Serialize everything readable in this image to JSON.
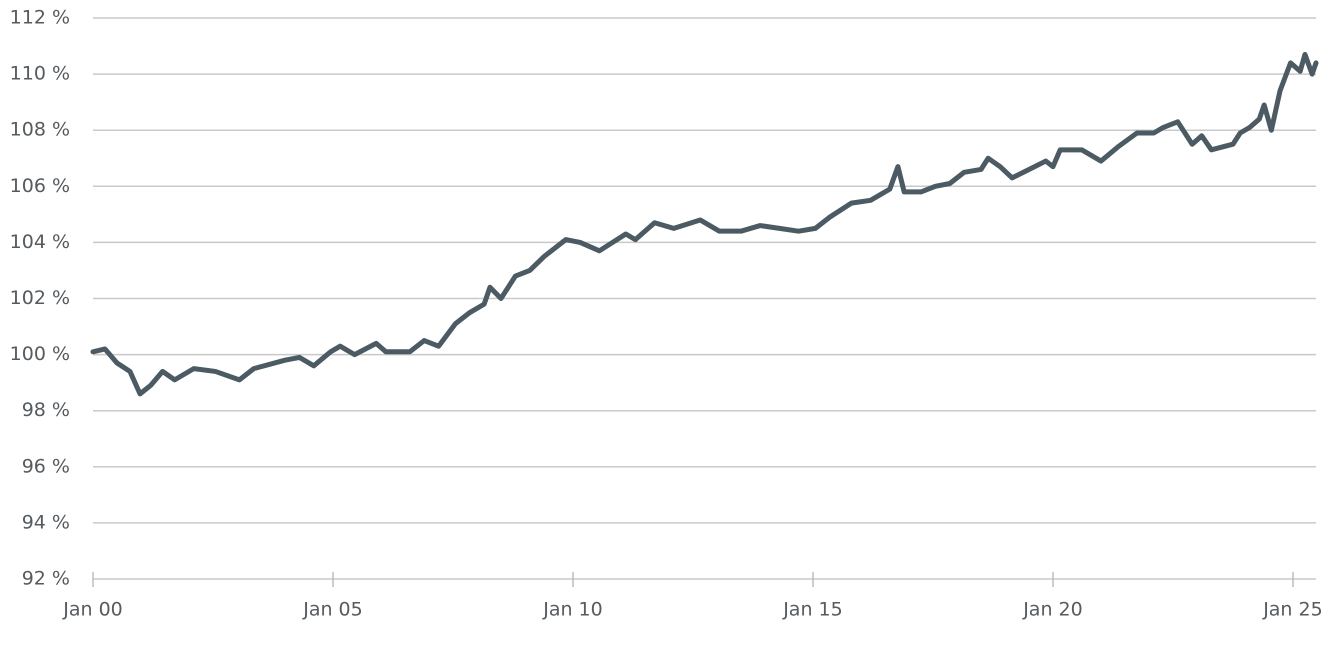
{
  "chart_data": {
    "type": "line",
    "x": [
      2000,
      2000.25,
      2000.5,
      2000.77,
      2000.98,
      2001.2,
      2001.45,
      2001.7,
      2002.1,
      2002.55,
      2003.05,
      2003.35,
      2004.0,
      2004.3,
      2004.6,
      2004.95,
      2005.15,
      2005.45,
      2005.9,
      2006.1,
      2006.6,
      2006.9,
      2007.2,
      2007.55,
      2007.85,
      2008.15,
      2008.27,
      2008.5,
      2008.8,
      2009.1,
      2009.4,
      2009.85,
      2010.15,
      2010.55,
      2011.1,
      2011.3,
      2011.7,
      2012.1,
      2012.65,
      2013.05,
      2013.5,
      2013.9,
      2014.3,
      2014.7,
      2015.05,
      2015.35,
      2015.8,
      2016.2,
      2016.6,
      2016.77,
      2016.9,
      2017.25,
      2017.55,
      2017.85,
      2018.15,
      2018.5,
      2018.65,
      2018.9,
      2019.15,
      2019.5,
      2019.85,
      2020.0,
      2020.15,
      2020.6,
      2021.0,
      2021.35,
      2021.75,
      2022.1,
      2022.3,
      2022.6,
      2022.9,
      2023.1,
      2023.3,
      2023.75,
      2023.9,
      2024.1,
      2024.3,
      2024.4,
      2024.55,
      2024.73,
      2024.95,
      2025.15,
      2025.25,
      2025.4,
      2025.48
    ],
    "series": [
      {
        "color": "#4b5a63",
        "values": [
          100.1,
          100.2,
          99.7,
          99.4,
          98.6,
          98.9,
          99.4,
          99.1,
          99.5,
          99.4,
          99.1,
          99.5,
          99.8,
          99.9,
          99.6,
          100.1,
          100.3,
          100.0,
          100.4,
          100.1,
          100.1,
          100.5,
          100.3,
          101.1,
          101.5,
          101.8,
          102.4,
          102.0,
          102.8,
          103.0,
          103.5,
          104.1,
          104.0,
          103.7,
          104.3,
          104.1,
          104.7,
          104.5,
          104.8,
          104.4,
          104.4,
          104.6,
          104.5,
          104.4,
          104.5,
          104.9,
          105.4,
          105.5,
          105.9,
          106.7,
          105.8,
          105.8,
          106.0,
          106.1,
          106.5,
          106.6,
          107.0,
          106.7,
          106.3,
          106.6,
          106.9,
          106.7,
          107.3,
          107.3,
          106.9,
          107.4,
          107.9,
          107.9,
          108.1,
          108.3,
          107.5,
          107.8,
          107.3,
          107.5,
          107.9,
          108.1,
          108.4,
          108.9,
          108.0,
          109.4,
          110.4,
          110.1,
          110.7,
          110.0,
          110.4
        ]
      }
    ],
    "xlim": [
      2000,
      2025.48
    ],
    "xticks": [
      {
        "value": 2000,
        "label": "Jan 00"
      },
      {
        "value": 2005,
        "label": "Jan 05"
      },
      {
        "value": 2010,
        "label": "Jan 10"
      },
      {
        "value": 2015,
        "label": "Jan 15"
      },
      {
        "value": 2020,
        "label": "Jan 20"
      },
      {
        "value": 2025,
        "label": "Jan 25"
      }
    ],
    "ylim": [
      92,
      112
    ],
    "yticks": [
      {
        "value": 92,
        "label": "92 %"
      },
      {
        "value": 94,
        "label": "94 %"
      },
      {
        "value": 96,
        "label": "96 %"
      },
      {
        "value": 98,
        "label": "98 %"
      },
      {
        "value": 100,
        "label": "100 %"
      },
      {
        "value": 102,
        "label": "102 %"
      },
      {
        "value": 104,
        "label": "104 %"
      },
      {
        "value": 106,
        "label": "106 %"
      },
      {
        "value": 108,
        "label": "108 %"
      },
      {
        "value": 110,
        "label": "110 %"
      },
      {
        "value": 112,
        "label": "112 %"
      }
    ],
    "grid": true
  }
}
